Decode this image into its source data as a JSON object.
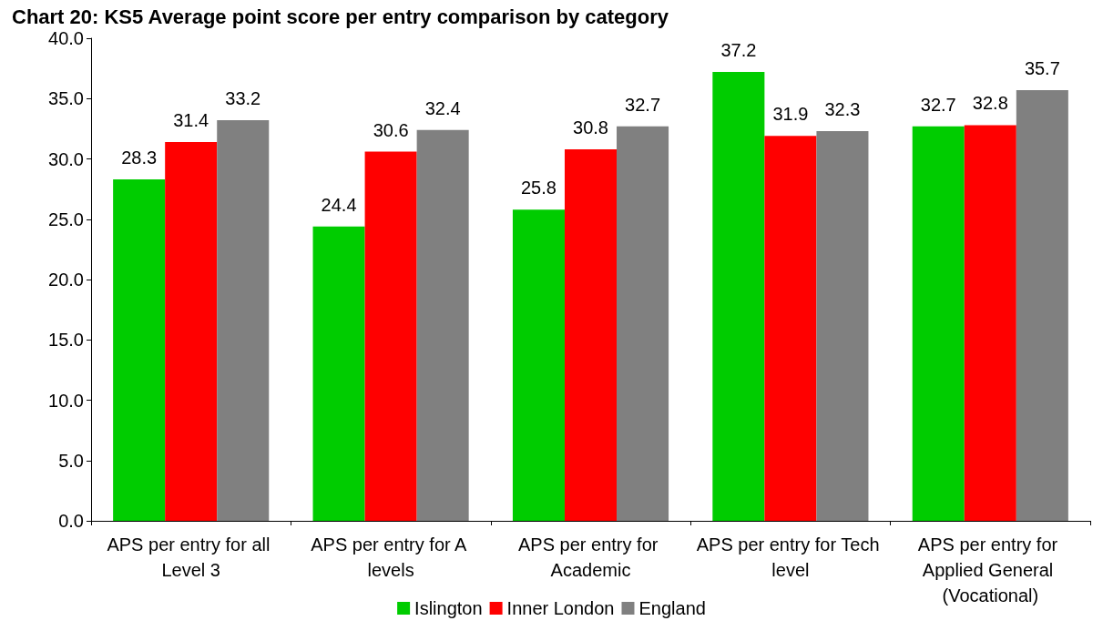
{
  "chart_data": {
    "type": "bar",
    "title": "Chart 20: KS5 Average point score per entry comparison by category",
    "categories": [
      "APS per entry for all Level 3",
      "APS per entry for A levels",
      "APS per entry for Academic",
      "APS per entry for Tech level",
      "APS per entry for Applied General (Vocational)"
    ],
    "series": [
      {
        "name": "Islington",
        "color": "#00cc00",
        "values": [
          28.3,
          24.4,
          25.8,
          37.2,
          32.7
        ]
      },
      {
        "name": "Inner London",
        "color": "#ff0000",
        "values": [
          31.4,
          30.6,
          30.8,
          31.9,
          32.8
        ]
      },
      {
        "name": "England",
        "color": "#808080",
        "values": [
          33.2,
          32.4,
          32.7,
          32.3,
          35.7
        ]
      }
    ],
    "ylim": [
      0,
      40
    ],
    "yticks": [
      {
        "value": 0,
        "label": "0.0"
      },
      {
        "value": 5,
        "label": "5.0"
      },
      {
        "value": 10,
        "label": "10.0"
      },
      {
        "value": 15,
        "label": "15.0"
      },
      {
        "value": 20,
        "label": "20.0"
      },
      {
        "value": 25,
        "label": "25.0"
      },
      {
        "value": 30,
        "label": "30.0"
      },
      {
        "value": 35,
        "label": "35.0"
      },
      {
        "value": 40,
        "label": "40.0"
      }
    ],
    "data_labels": true,
    "grid": false,
    "legend": "bottom"
  }
}
